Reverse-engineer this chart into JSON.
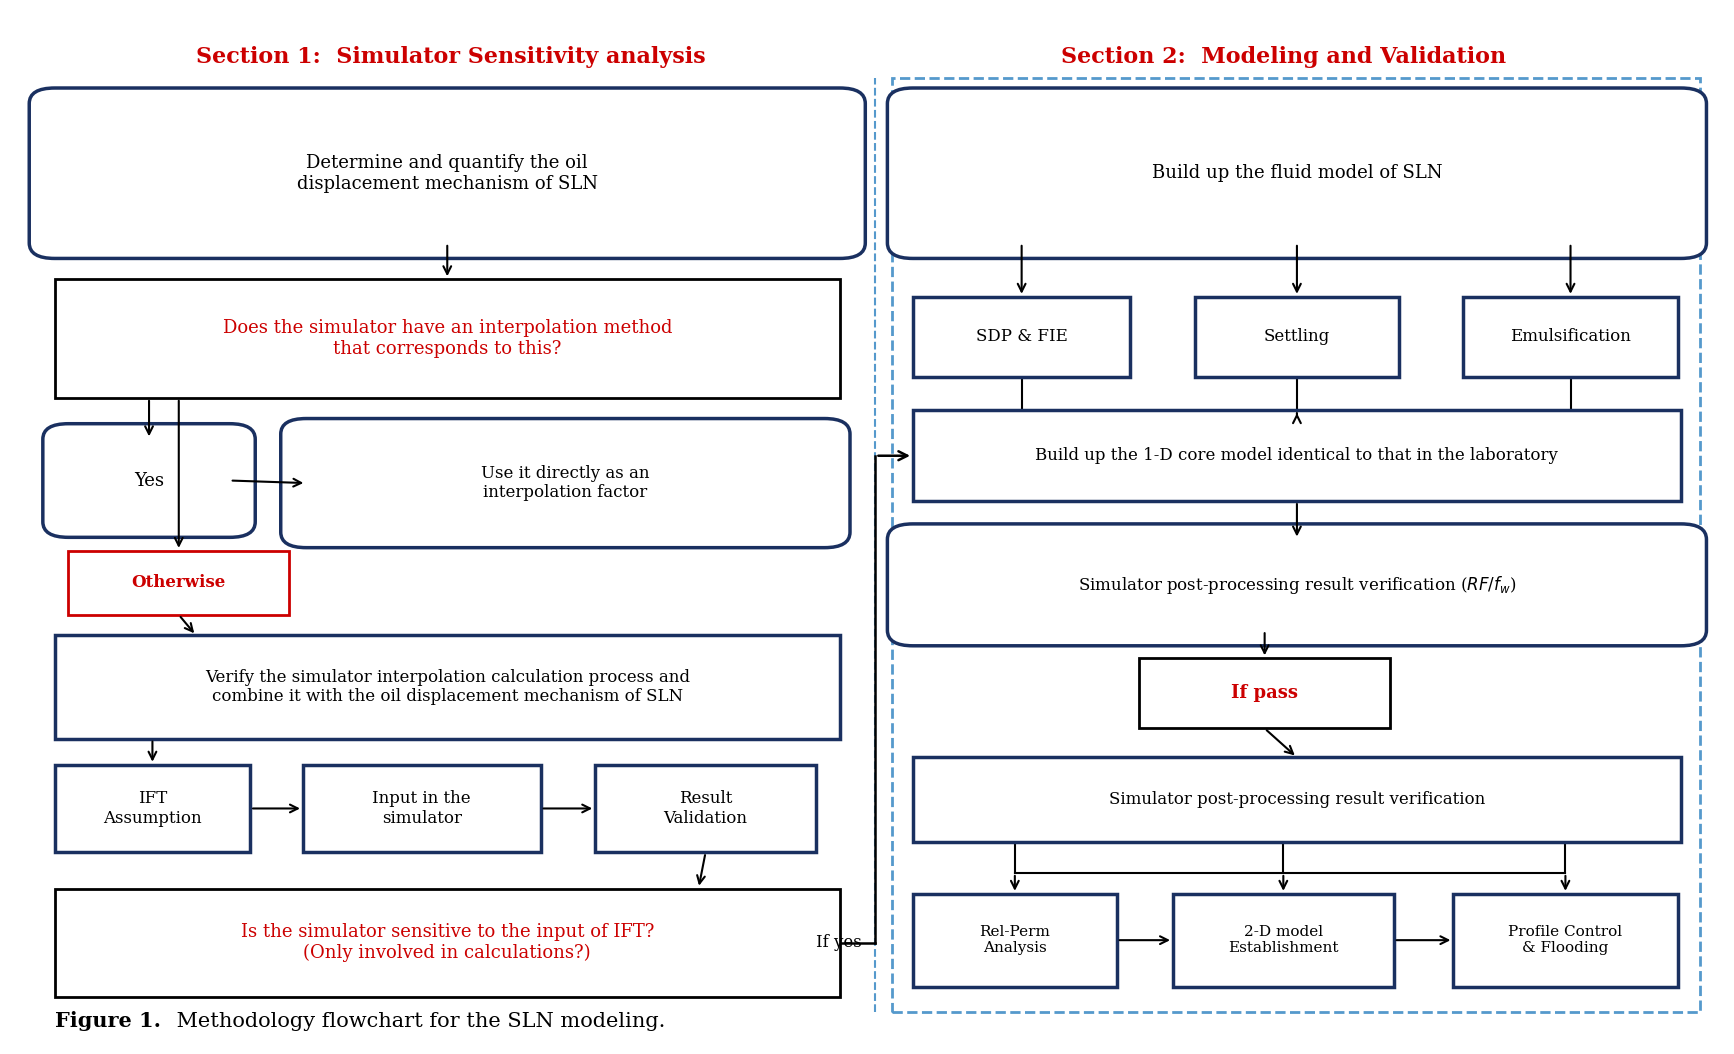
{
  "title_bold": "Figure 1.",
  "title_rest": " Methodology flowchart for the SLN modeling.",
  "section1_title": "Section 1:  Simulator Sensitivity analysis",
  "section2_title": "Section 2:  Modeling and Validation",
  "figsize": [
    17.34,
    10.54
  ],
  "dpi": 100,
  "bg_color": "#ffffff",
  "dark_blue": "#1a3060",
  "black": "#000000",
  "red": "#cc0000",
  "blue_dash": "#5599cc",
  "caption_fontsize": 15,
  "title_fontsize": 16,
  "body_fontsize": 13,
  "small_fontsize": 12,
  "smaller_fontsize": 11
}
